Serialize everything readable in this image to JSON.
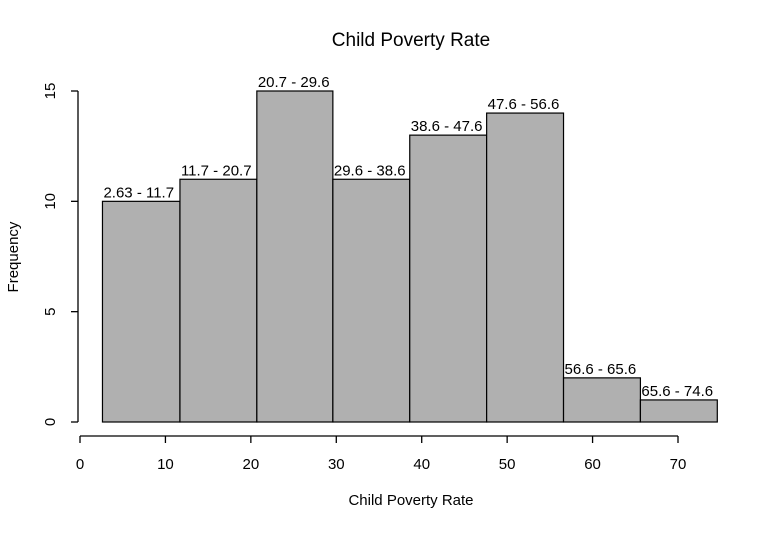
{
  "chart_data": {
    "type": "bar",
    "title": "Child Poverty Rate",
    "xlabel": "Child Poverty Rate",
    "ylabel": "Frequency",
    "bins": [
      {
        "x0": 2.63,
        "x1": 11.7,
        "count": 10,
        "label": "2.63 - 11.7"
      },
      {
        "x0": 11.7,
        "x1": 20.7,
        "count": 11,
        "label": "11.7 - 20.7"
      },
      {
        "x0": 20.7,
        "x1": 29.6,
        "count": 15,
        "label": "20.7 - 29.6"
      },
      {
        "x0": 29.6,
        "x1": 38.6,
        "count": 11,
        "label": "29.6 - 38.6"
      },
      {
        "x0": 38.6,
        "x1": 47.6,
        "count": 13,
        "label": "38.6 - 47.6"
      },
      {
        "x0": 47.6,
        "x1": 56.6,
        "count": 14,
        "label": "47.6 - 56.6"
      },
      {
        "x0": 56.6,
        "x1": 65.6,
        "count": 2,
        "label": "56.6 - 65.6"
      },
      {
        "x0": 65.6,
        "x1": 74.6,
        "count": 1,
        "label": "65.6 - 74.6"
      }
    ],
    "xlim": [
      0,
      75
    ],
    "ylim": [
      0,
      15
    ],
    "x_ticks": [
      0,
      10,
      20,
      30,
      40,
      50,
      60,
      70
    ],
    "y_ticks": [
      0,
      5,
      10,
      15
    ],
    "grid": false,
    "legend": "none",
    "bar_color": "#b0b0b0"
  }
}
